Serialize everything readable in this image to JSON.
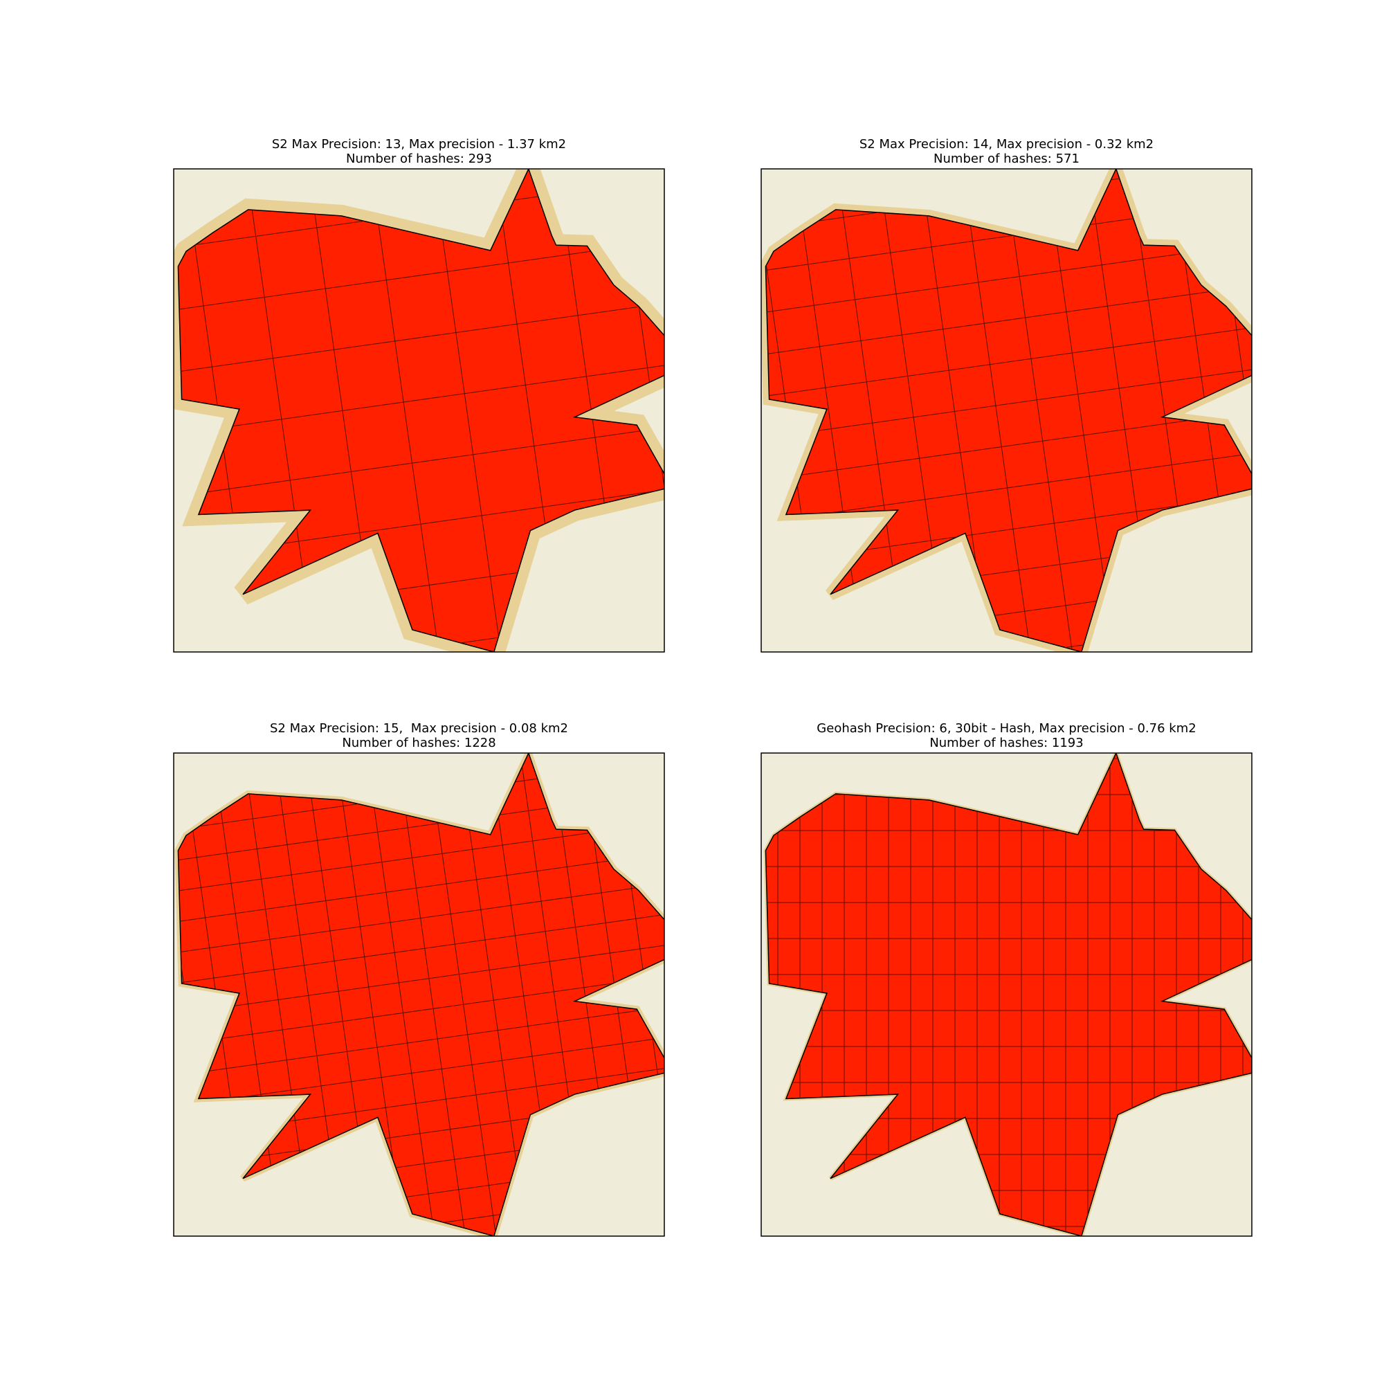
{
  "panels": [
    {
      "title": [
        "S2 Max Precision: 13, Max precision - 1.37 km2",
        "Number of hashes: 293"
      ]
    },
    {
      "title": [
        "S2 Max Precision: 14, Max precision - 0.32 km2",
        "Number of hashes: 571"
      ]
    },
    {
      "title": [
        "S2 Max Precision: 15,  Max precision - 0.08 km2",
        "Number of hashes: 1228"
      ]
    },
    {
      "title": [
        "Geohash Precision: 6, 30bit - Hash, Max precision - 0.76 km2",
        "Number of hashes: 1193"
      ]
    }
  ]
}
